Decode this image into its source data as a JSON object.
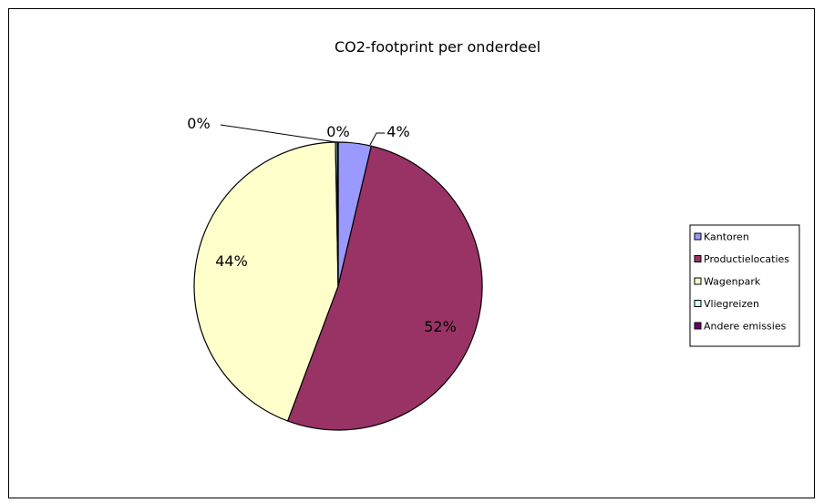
{
  "chart_data": {
    "type": "pie",
    "title": "CO2-footprint per onderdeel",
    "categories": [
      "Kantoren",
      "Productielocaties",
      "Wagenpark",
      "Vliegreizen",
      "Andere emissies"
    ],
    "values": [
      3.7,
      52.0,
      44.0,
      0.2,
      0.1
    ],
    "data_labels": [
      "4%",
      "52%",
      "44%",
      "0%",
      "0%"
    ],
    "colors": [
      "#9999ff",
      "#993366",
      "#ffffcc",
      "#ccffff",
      "#660066"
    ],
    "legend_position": "right",
    "start_angle": "12 o'clock",
    "direction": "clockwise"
  }
}
